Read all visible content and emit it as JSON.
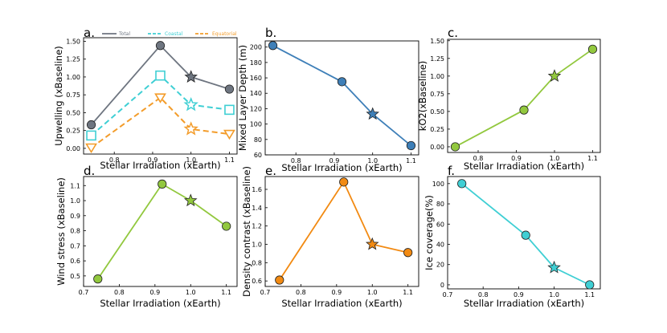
{
  "chart_data": [
    {
      "panel_label": "a.",
      "type": "line",
      "xlabel": "Stellar Irradiation (xEarth)",
      "ylabel": "Upwelling (xBaseline)",
      "xlim": [
        0.72,
        1.12
      ],
      "ylim": [
        -0.08,
        1.55
      ],
      "xticks": [
        0.8,
        0.9,
        1.0,
        1.1
      ],
      "xtick_labels": [
        "0.8",
        "0.9",
        "1.0",
        "1.1"
      ],
      "yticks": [
        0.0,
        0.25,
        0.5,
        0.75,
        1.0,
        1.25,
        1.5
      ],
      "ytick_labels": [
        "0.00",
        "0.25",
        "0.50",
        "0.75",
        "1.00",
        "1.25",
        "1.50"
      ],
      "legend": {
        "placement": "top",
        "entries": [
          "Total",
          "Coastal",
          "Equatorial"
        ]
      },
      "series": [
        {
          "name": "Total",
          "color": "#6e7580",
          "dash": "solid",
          "marker": "circle",
          "x": [
            0.74,
            0.92,
            1.0,
            1.1
          ],
          "values": [
            0.33,
            1.44,
            1.0,
            0.83
          ]
        },
        {
          "name": "Coastal",
          "color": "#3fcfd4",
          "dash": "dashed",
          "marker": "square",
          "x": [
            0.74,
            0.92,
            1.0,
            1.1
          ],
          "values": [
            0.18,
            1.02,
            0.61,
            0.54
          ]
        },
        {
          "name": "Equatorial",
          "color": "#f39c2a",
          "dash": "dashed",
          "marker": "triangle-down",
          "x": [
            0.74,
            0.92,
            1.0,
            1.1
          ],
          "values": [
            0.01,
            0.71,
            0.27,
            0.2
          ]
        }
      ]
    },
    {
      "panel_label": "b.",
      "type": "line",
      "xlabel": "Stellar Irradiation  (xEarth)",
      "ylabel": "Mixed Layer Depth (m)",
      "xlim": [
        0.72,
        1.12
      ],
      "ylim": [
        60,
        208
      ],
      "xticks": [
        0.8,
        0.9,
        1.0,
        1.1
      ],
      "xtick_labels": [
        "0.8",
        "0.9",
        "1.0",
        "1.1"
      ],
      "yticks": [
        60,
        80,
        100,
        120,
        140,
        160,
        180,
        200
      ],
      "ytick_labels": [
        "60",
        "80",
        "100",
        "120",
        "140",
        "160",
        "180",
        "200"
      ],
      "series": [
        {
          "name": "Mixed Layer Depth",
          "color": "#3e7fb8",
          "dash": "solid",
          "marker": "circle",
          "x": [
            0.74,
            0.92,
            1.0,
            1.1
          ],
          "values": [
            202,
            155,
            113,
            72
          ]
        }
      ]
    },
    {
      "panel_label": "c.",
      "type": "line",
      "xlabel": "Stellar Irradiation  (xEarth)",
      "ylabel": "kO2(xBaseline)",
      "xlim": [
        0.72,
        1.12
      ],
      "ylim": [
        -0.08,
        1.52
      ],
      "xticks": [
        0.8,
        0.9,
        1.0,
        1.1
      ],
      "xtick_labels": [
        "0.8",
        "0.9",
        "1.0",
        "1.1"
      ],
      "yticks": [
        0.0,
        0.25,
        0.5,
        0.75,
        1.0,
        1.25,
        1.5
      ],
      "ytick_labels": [
        "0.00",
        "0.25",
        "0.50",
        "0.75",
        "1.00",
        "1.25",
        "1.50"
      ],
      "series": [
        {
          "name": "kO2",
          "color": "#92c83e",
          "dash": "solid",
          "marker": "circle",
          "x": [
            0.74,
            0.92,
            1.0,
            1.1
          ],
          "values": [
            0.0,
            0.52,
            1.0,
            1.38
          ]
        }
      ]
    },
    {
      "panel_label": "d.",
      "type": "line",
      "xlabel": "Stellar Irradiation (xEarth)",
      "ylabel": "Wind stress (xBaseline)",
      "xlim": [
        0.7,
        1.13
      ],
      "ylim": [
        0.43,
        1.16
      ],
      "xticks": [
        0.7,
        0.8,
        0.9,
        1.0,
        1.1
      ],
      "xtick_labels": [
        "0.7",
        "0.8",
        "0.9",
        "1.0",
        "1.1"
      ],
      "yticks": [
        0.5,
        0.6,
        0.7,
        0.8,
        0.9,
        1.0,
        1.1
      ],
      "ytick_labels": [
        "0.5",
        "0.6",
        "0.7",
        "0.8",
        "0.9",
        "1.0",
        "1.1"
      ],
      "series": [
        {
          "name": "Wind stress",
          "color": "#92c83e",
          "dash": "solid",
          "marker": "circle",
          "x": [
            0.74,
            0.92,
            1.0,
            1.1
          ],
          "values": [
            0.48,
            1.11,
            1.0,
            0.83
          ]
        }
      ]
    },
    {
      "panel_label": "e.",
      "type": "line",
      "xlabel": "Stellar Irradiation (xEarth)",
      "ylabel": "Density contrast (xBaseline)",
      "xlim": [
        0.7,
        1.13
      ],
      "ylim": [
        0.54,
        1.74
      ],
      "xticks": [
        0.7,
        0.8,
        0.9,
        1.0,
        1.1
      ],
      "xtick_labels": [
        "0.7",
        "0.8",
        "0.9",
        "1.0",
        "1.1"
      ],
      "yticks": [
        0.6,
        0.8,
        1.0,
        1.2,
        1.4,
        1.6
      ],
      "ytick_labels": [
        "0.6",
        "0.8",
        "1.0",
        "1.2",
        "1.4",
        "1.6"
      ],
      "series": [
        {
          "name": "Density contrast",
          "color": "#f28a12",
          "dash": "solid",
          "marker": "circle",
          "x": [
            0.74,
            0.92,
            1.0,
            1.1
          ],
          "values": [
            0.61,
            1.68,
            1.0,
            0.91
          ]
        }
      ]
    },
    {
      "panel_label": "f.",
      "type": "line",
      "xlabel": "Stellar Irradiation (xEarth)",
      "ylabel": "Ice coverage(%)",
      "xlim": [
        0.7,
        1.13
      ],
      "ylim": [
        -4,
        107
      ],
      "xticks": [
        0.7,
        0.8,
        0.9,
        1.0,
        1.1
      ],
      "xtick_labels": [
        "0.7",
        "0.8",
        "0.9",
        "1.0",
        "1.1"
      ],
      "yticks": [
        0,
        20,
        40,
        60,
        80,
        100
      ],
      "ytick_labels": [
        "0",
        "20",
        "40",
        "60",
        "80",
        "100"
      ],
      "series": [
        {
          "name": "Ice coverage",
          "color": "#3fcfd4",
          "dash": "solid",
          "marker": "circle",
          "x": [
            0.74,
            0.92,
            1.0,
            1.1
          ],
          "values": [
            100,
            49,
            17,
            0
          ]
        }
      ]
    }
  ]
}
